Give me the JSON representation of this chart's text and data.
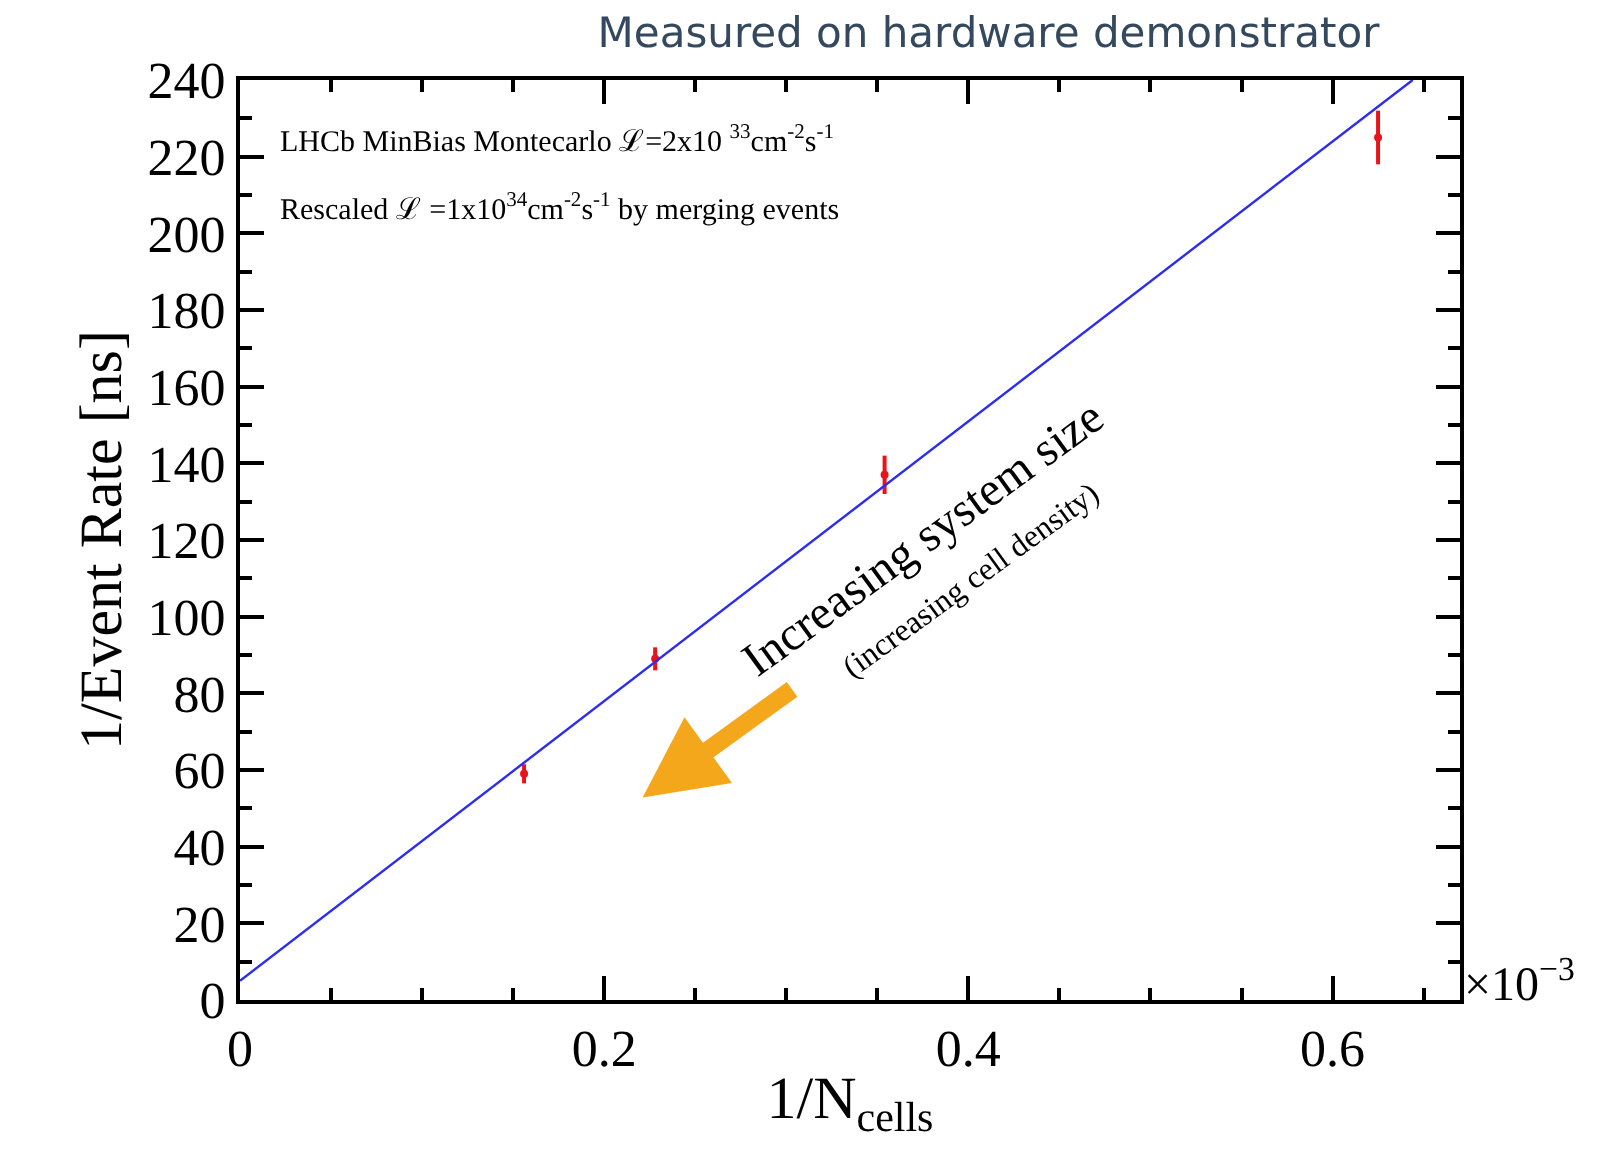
{
  "chart_data": {
    "type": "scatter",
    "title": "Measured on hardware demonstrator",
    "xlabel": "1/N$_{cells}$",
    "ylabel": "1/Event Rate [ns]",
    "xlim": [
      0,
      0.67
    ],
    "xticks": [
      0,
      0.2,
      0.4,
      0.6
    ],
    "ylim": [
      0,
      240
    ],
    "yticks": [
      0,
      20,
      40,
      60,
      80,
      100,
      120,
      140,
      160,
      180,
      200,
      220,
      240
    ],
    "series": [
      {
        "color": "#e8141c",
        "marker": "circle",
        "x": [
          0.156,
          0.228,
          0.354,
          0.625
        ],
        "values": [
          59,
          89,
          137,
          225
        ],
        "errors": [
          2.5,
          3,
          5,
          7
        ]
      },
      {
        "type": "line",
        "color": "#2c2cf0",
        "x": [
          0,
          0.644
        ],
        "values": [
          5,
          240
        ],
        "line_style": "solid",
        "marker": "none"
      }
    ],
    "annotations": [
      "LHCb MinBias Montecarlo ℒ=2x10 $^{33}$cm$^{-2}$s$^{-1}$",
      "Rescaled ℒ =1x10$^{34}$cm$^{-2}$s$^{-1}$ by merging events",
      "Increasing system size",
      "(increasing cell density)",
      "×10$^{−3}$"
    ]
  }
}
